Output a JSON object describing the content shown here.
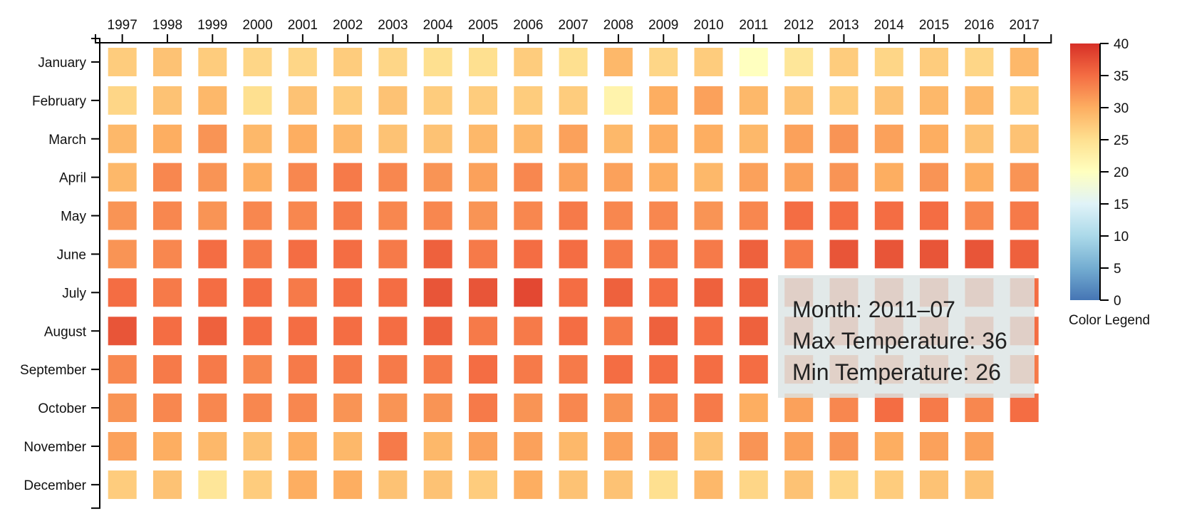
{
  "chart_data": {
    "type": "heatmap",
    "title": "",
    "x_label": "",
    "y_label": "",
    "years": [
      "1997",
      "1998",
      "1999",
      "2000",
      "2001",
      "2002",
      "2003",
      "2004",
      "2005",
      "2006",
      "2007",
      "2008",
      "2009",
      "2010",
      "2011",
      "2012",
      "2013",
      "2014",
      "2015",
      "2016",
      "2017"
    ],
    "months": [
      "January",
      "February",
      "March",
      "April",
      "May",
      "June",
      "July",
      "August",
      "September",
      "October",
      "November",
      "December"
    ],
    "max_temperature": [
      [
        27,
        28,
        27,
        26,
        26,
        27,
        26,
        25,
        25,
        27,
        25,
        29,
        26,
        27,
        20,
        24,
        27,
        26,
        27,
        26,
        29
      ],
      [
        26,
        28,
        29,
        25,
        28,
        27,
        28,
        27,
        27,
        27,
        27,
        22,
        30,
        31,
        29,
        28,
        27,
        28,
        29,
        29,
        27
      ],
      [
        29,
        30,
        32,
        29,
        30,
        29,
        28,
        28,
        29,
        29,
        31,
        29,
        30,
        30,
        29,
        31,
        32,
        31,
        30,
        28,
        28
      ],
      [
        29,
        33,
        32,
        30,
        33,
        34,
        33,
        32,
        31,
        33,
        31,
        31,
        30,
        29,
        31,
        31,
        32,
        30,
        32,
        30,
        32
      ],
      [
        32,
        33,
        32,
        33,
        33,
        34,
        33,
        33,
        32,
        33,
        34,
        33,
        33,
        32,
        33,
        35,
        35,
        35,
        35,
        33,
        34
      ],
      [
        32,
        33,
        35,
        34,
        35,
        35,
        34,
        36,
        34,
        35,
        35,
        34,
        34,
        34,
        36,
        34,
        37,
        37,
        37,
        37,
        36
      ],
      [
        35,
        34,
        35,
        35,
        34,
        35,
        35,
        37,
        37,
        38,
        35,
        36,
        35,
        36,
        36,
        35,
        35,
        35,
        35,
        35,
        35
      ],
      [
        37,
        35,
        36,
        35,
        35,
        35,
        35,
        36,
        34,
        34,
        35,
        34,
        36,
        35,
        36,
        35,
        35,
        35,
        35,
        35,
        35
      ],
      [
        33,
        34,
        34,
        33,
        34,
        34,
        34,
        34,
        35,
        34,
        34,
        35,
        35,
        35,
        35,
        34,
        34,
        34,
        34,
        34,
        34
      ],
      [
        32,
        33,
        33,
        33,
        33,
        32,
        32,
        32,
        34,
        32,
        33,
        32,
        33,
        34,
        30,
        31,
        33,
        35,
        34,
        33,
        35
      ],
      [
        31,
        30,
        29,
        28,
        30,
        29,
        34,
        29,
        31,
        31,
        29,
        31,
        32,
        28,
        32,
        31,
        32,
        30,
        31,
        31,
        null
      ],
      [
        27,
        28,
        24,
        27,
        30,
        30,
        28,
        28,
        27,
        30,
        28,
        28,
        25,
        29,
        26,
        28,
        26,
        27,
        28,
        28,
        null
      ]
    ],
    "color_scale": {
      "domain": [
        0,
        40
      ],
      "ticks": [
        0,
        5,
        10,
        15,
        20,
        25,
        30,
        35,
        40
      ],
      "colors": [
        "#4575b4",
        "#74add1",
        "#abd9e9",
        "#e0f3f8",
        "#ffffbf",
        "#fee090",
        "#fdae61",
        "#f46d43",
        "#d73027"
      ],
      "label": "Color Legend"
    }
  },
  "tooltip": {
    "month_text": "Month: 2011–07",
    "max_text": "Max Temperature: 36",
    "min_text": "Min Temperature: 26"
  }
}
